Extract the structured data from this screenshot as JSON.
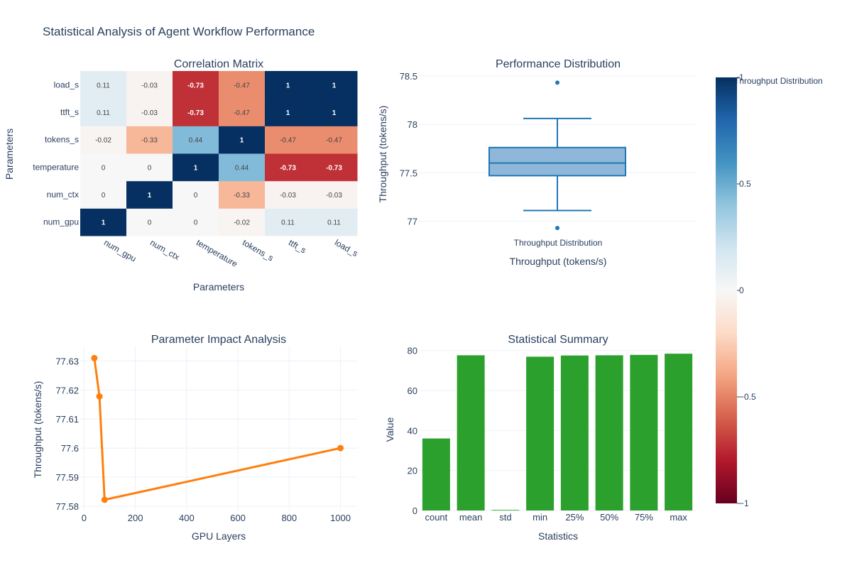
{
  "title": "Statistical Analysis of Agent Workflow Performance",
  "colors": {
    "text": "#2a3f5f",
    "grid": "#ebf0f8",
    "box": "#1f77b4",
    "box_fill": "#8fb7d9",
    "line": "#ff7f0e",
    "bar": "#2ca02c",
    "heat_scale": [
      "#67001f",
      "#b2182b",
      "#d6604d",
      "#f4a582",
      "#fddbc7",
      "#f7f7f7",
      "#d1e5f0",
      "#92c5de",
      "#4393c3",
      "#2166ac",
      "#053061"
    ]
  },
  "chart_data": [
    {
      "type": "heatmap",
      "title": "Correlation Matrix",
      "xlabel": "Parameters",
      "ylabel": "Parameters",
      "x_categories": [
        "num_gpu",
        "num_ctx",
        "temperature",
        "tokens_s",
        "ttft_s",
        "load_s"
      ],
      "y_categories": [
        "num_gpu",
        "num_ctx",
        "temperature",
        "tokens_s",
        "ttft_s",
        "load_s"
      ],
      "z": [
        [
          1,
          0,
          0,
          -0.02,
          0.11,
          0.11
        ],
        [
          0,
          1,
          0,
          -0.33,
          -0.03,
          -0.03
        ],
        [
          0,
          0,
          1,
          0.44,
          -0.73,
          -0.73
        ],
        [
          -0.02,
          -0.33,
          0.44,
          1,
          -0.47,
          -0.47
        ],
        [
          0.11,
          -0.03,
          -0.73,
          -0.47,
          1,
          1
        ],
        [
          0.11,
          -0.03,
          -0.73,
          -0.47,
          1,
          1
        ]
      ],
      "zlim": [
        -1,
        1
      ],
      "colorbar_ticks": [
        "1",
        "0.5",
        "0",
        "−0.5",
        "−1"
      ]
    },
    {
      "type": "box",
      "title": "Performance Distribution",
      "xlabel": "Throughput (tokens/s)",
      "ylabel": "Throughput (tokens/s)",
      "category": "Throughput Distribution",
      "legend": "Throughput Distribution",
      "ylim": [
        76.85,
        78.55
      ],
      "yticks": [
        77,
        77.5,
        78,
        78.5
      ],
      "ytick_labels": [
        "77",
        "77.5",
        "78",
        "78.5"
      ],
      "q1": 77.47,
      "median": 77.6,
      "q3": 77.76,
      "lower_fence": 77.11,
      "upper_fence": 78.06,
      "outliers": [
        78.43,
        76.93
      ]
    },
    {
      "type": "line",
      "title": "Parameter Impact Analysis",
      "xlabel": "GPU Layers",
      "ylabel": "Throughput (tokens/s)",
      "x": [
        40,
        60,
        80,
        1000
      ],
      "y": [
        77.631,
        77.6178,
        77.5822,
        77.6
      ],
      "xlim": [
        -15,
        1065
      ],
      "ylim": [
        77.5785,
        77.635
      ],
      "xticks": [
        0,
        200,
        400,
        600,
        800,
        1000
      ],
      "xtick_labels": [
        "0",
        "200",
        "400",
        "600",
        "800",
        "1000"
      ],
      "yticks": [
        77.58,
        77.59,
        77.6,
        77.61,
        77.62,
        77.63
      ],
      "ytick_labels": [
        "77.58",
        "77.59",
        "77.6",
        "77.61",
        "77.62",
        "77.63"
      ]
    },
    {
      "type": "bar",
      "title": "Statistical Summary",
      "xlabel": "Statistics",
      "ylabel": "Value",
      "categories": [
        "count",
        "mean",
        "std",
        "min",
        "25%",
        "50%",
        "75%",
        "max"
      ],
      "values": [
        36,
        77.6,
        0.3,
        76.9,
        77.5,
        77.6,
        77.8,
        78.4
      ],
      "ylim": [
        0,
        82
      ],
      "yticks": [
        0,
        20,
        40,
        60,
        80
      ],
      "ytick_labels": [
        "0",
        "20",
        "40",
        "60",
        "80"
      ]
    }
  ]
}
